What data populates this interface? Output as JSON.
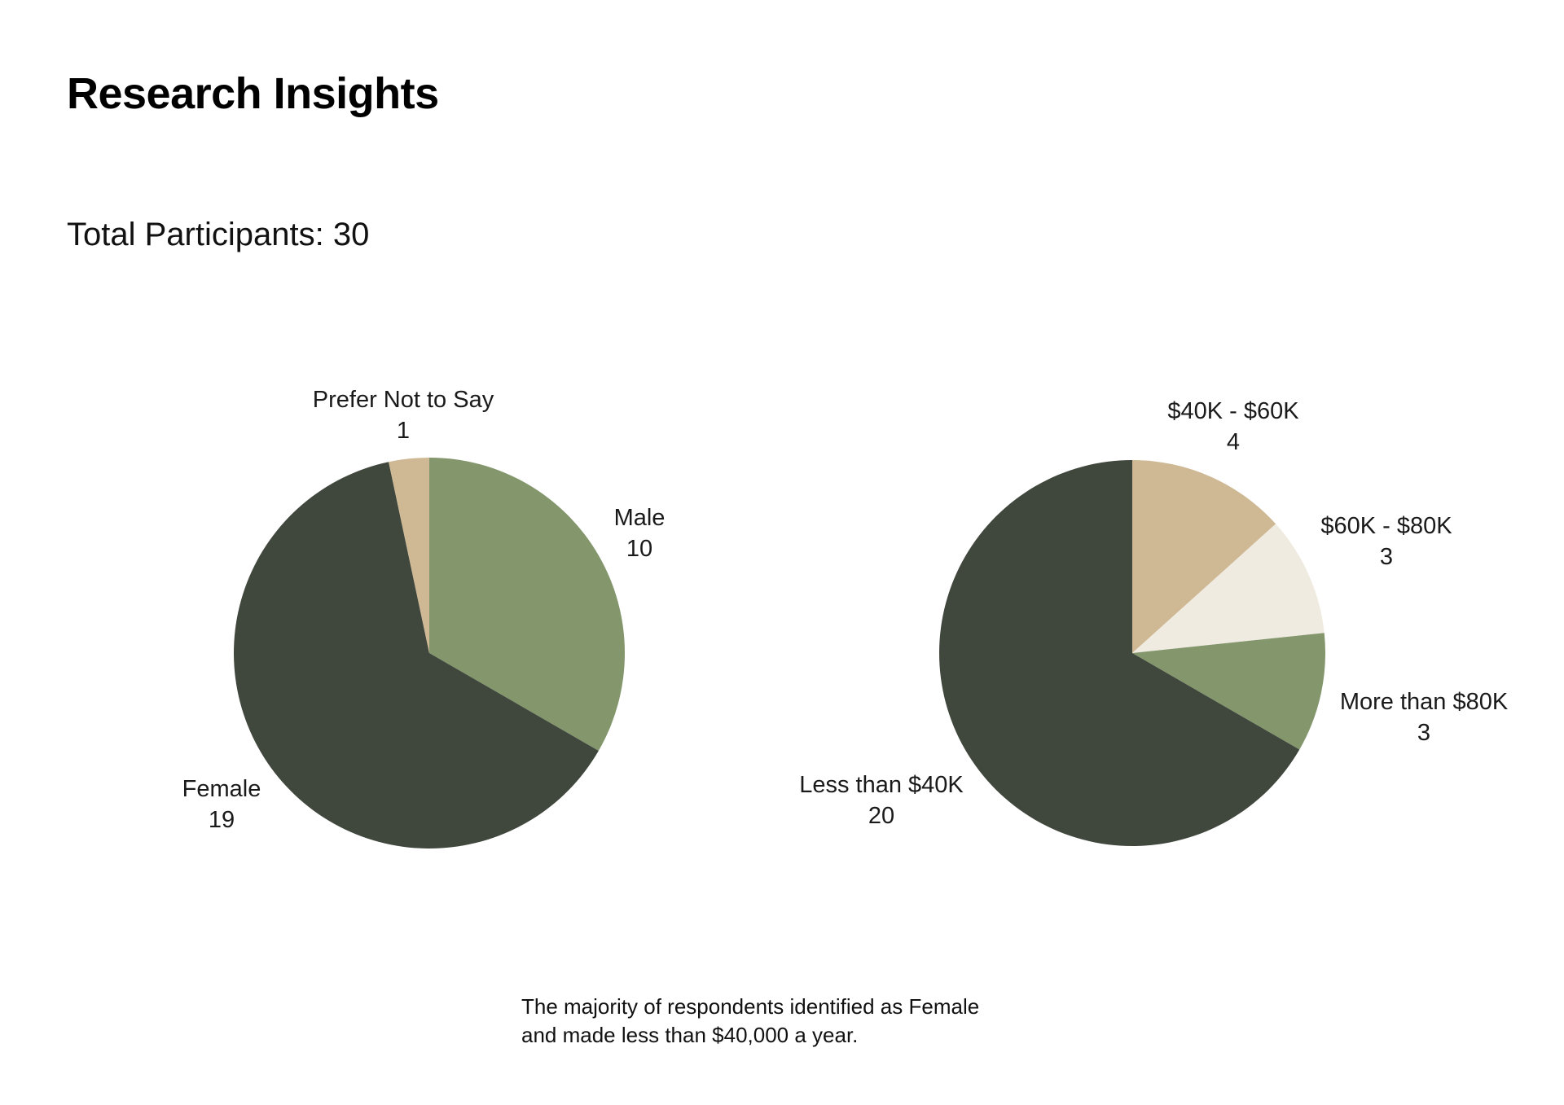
{
  "title": "Research Insights",
  "participants_label": "Total Participants: 30",
  "caption": {
    "line1": "The majority of respondents identified as Female",
    "line2": "and made less than $40,000 a year."
  },
  "colors": {
    "sage_green": "#83966c",
    "dark_olive": "#40473d",
    "tan": "#cfb894",
    "cream": "#f0ebe0"
  },
  "chart_data": [
    {
      "type": "pie",
      "title": "",
      "slices": [
        {
          "label": "Male",
          "value": 10,
          "color": "#83966c"
        },
        {
          "label": "Female",
          "value": 19,
          "color": "#40473d"
        },
        {
          "label": "Prefer Not to Say",
          "value": 1,
          "color": "#cfb894"
        }
      ]
    },
    {
      "type": "pie",
      "title": "",
      "slices": [
        {
          "label": "$40K - $60K",
          "value": 4,
          "color": "#cfb894"
        },
        {
          "label": "$60K - $80K",
          "value": 3,
          "color": "#f0ebe0"
        },
        {
          "label": "More than $80K",
          "value": 3,
          "color": "#83966c"
        },
        {
          "label": "Less than $40K",
          "value": 20,
          "color": "#40473d"
        }
      ]
    }
  ]
}
